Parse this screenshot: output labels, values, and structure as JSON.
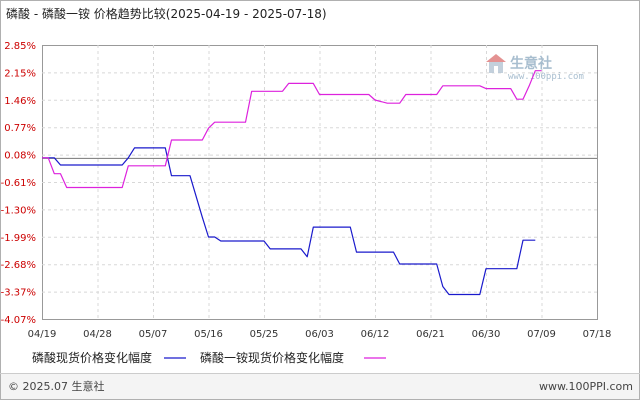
{
  "chart_data": {
    "type": "line",
    "title": "磷酸 - 磷酸一铵 价格趋势比较(2025-04-19 - 2025-07-18)",
    "xlabel": "",
    "ylabel": "",
    "x_ticks": [
      "04/19",
      "04/28",
      "05/07",
      "05/16",
      "05/25",
      "06/03",
      "06/12",
      "06/21",
      "06/30",
      "07/09",
      "07/18"
    ],
    "y_ticks": [
      "2.85%",
      "2.15%",
      "1.46%",
      "0.77%",
      "0.08%",
      "-0.61%",
      "-1.30%",
      "-1.99%",
      "-2.68%",
      "-3.37%",
      "-4.07%"
    ],
    "ylim": [
      -4.07,
      2.85
    ],
    "x_day_range": [
      0,
      90
    ],
    "grid": true,
    "legend_position": "bottom",
    "series": [
      {
        "name": "磷酸现货价格变化幅度",
        "color": "#1a1acc",
        "points": [
          [
            0,
            0.0
          ],
          [
            2,
            0.0
          ],
          [
            3,
            -0.18
          ],
          [
            10,
            -0.18
          ],
          [
            13,
            -0.18
          ],
          [
            14,
            0.0
          ],
          [
            15,
            0.25
          ],
          [
            20,
            0.25
          ],
          [
            21,
            -0.45
          ],
          [
            24,
            -0.45
          ],
          [
            26,
            -1.5
          ],
          [
            27,
            -2.0
          ],
          [
            28,
            -2.0
          ],
          [
            29,
            -2.1
          ],
          [
            36,
            -2.1
          ],
          [
            37,
            -2.3
          ],
          [
            42,
            -2.3
          ],
          [
            43,
            -2.5
          ],
          [
            44,
            -1.75
          ],
          [
            50,
            -1.75
          ],
          [
            51,
            -2.38
          ],
          [
            57,
            -2.38
          ],
          [
            58,
            -2.68
          ],
          [
            64,
            -2.68
          ],
          [
            65,
            -3.25
          ],
          [
            66,
            -3.45
          ],
          [
            71,
            -3.45
          ],
          [
            72,
            -2.8
          ],
          [
            77,
            -2.8
          ],
          [
            78,
            -2.08
          ],
          [
            80,
            -2.08
          ]
        ]
      },
      {
        "name": "磷酸一铵现货价格变化幅度",
        "color": "#dd22dd",
        "points": [
          [
            0,
            0.0
          ],
          [
            1,
            0.0
          ],
          [
            2,
            -0.4
          ],
          [
            3,
            -0.4
          ],
          [
            4,
            -0.75
          ],
          [
            13,
            -0.75
          ],
          [
            14,
            -0.2
          ],
          [
            20,
            -0.2
          ],
          [
            21,
            0.45
          ],
          [
            26,
            0.45
          ],
          [
            27,
            0.75
          ],
          [
            28,
            0.9
          ],
          [
            33,
            0.9
          ],
          [
            34,
            1.68
          ],
          [
            39,
            1.68
          ],
          [
            40,
            1.88
          ],
          [
            44,
            1.88
          ],
          [
            45,
            1.6
          ],
          [
            53,
            1.6
          ],
          [
            54,
            1.46
          ],
          [
            56,
            1.38
          ],
          [
            58,
            1.38
          ],
          [
            59,
            1.6
          ],
          [
            64,
            1.6
          ],
          [
            65,
            1.82
          ],
          [
            71,
            1.82
          ],
          [
            72,
            1.75
          ],
          [
            76,
            1.75
          ],
          [
            77,
            1.48
          ],
          [
            78,
            1.48
          ],
          [
            79,
            1.82
          ],
          [
            80,
            2.2
          ],
          [
            81,
            2.2
          ]
        ]
      }
    ]
  },
  "legend": {
    "series_a_label": "磷酸现货价格变化幅度",
    "series_b_label": "磷酸一铵现货价格变化幅度"
  },
  "footer": {
    "copyright": "© 2025.07 生意社",
    "url": "www.100PPI.com"
  },
  "watermark": {
    "text": "生意社",
    "url": "www.100ppi.com"
  }
}
